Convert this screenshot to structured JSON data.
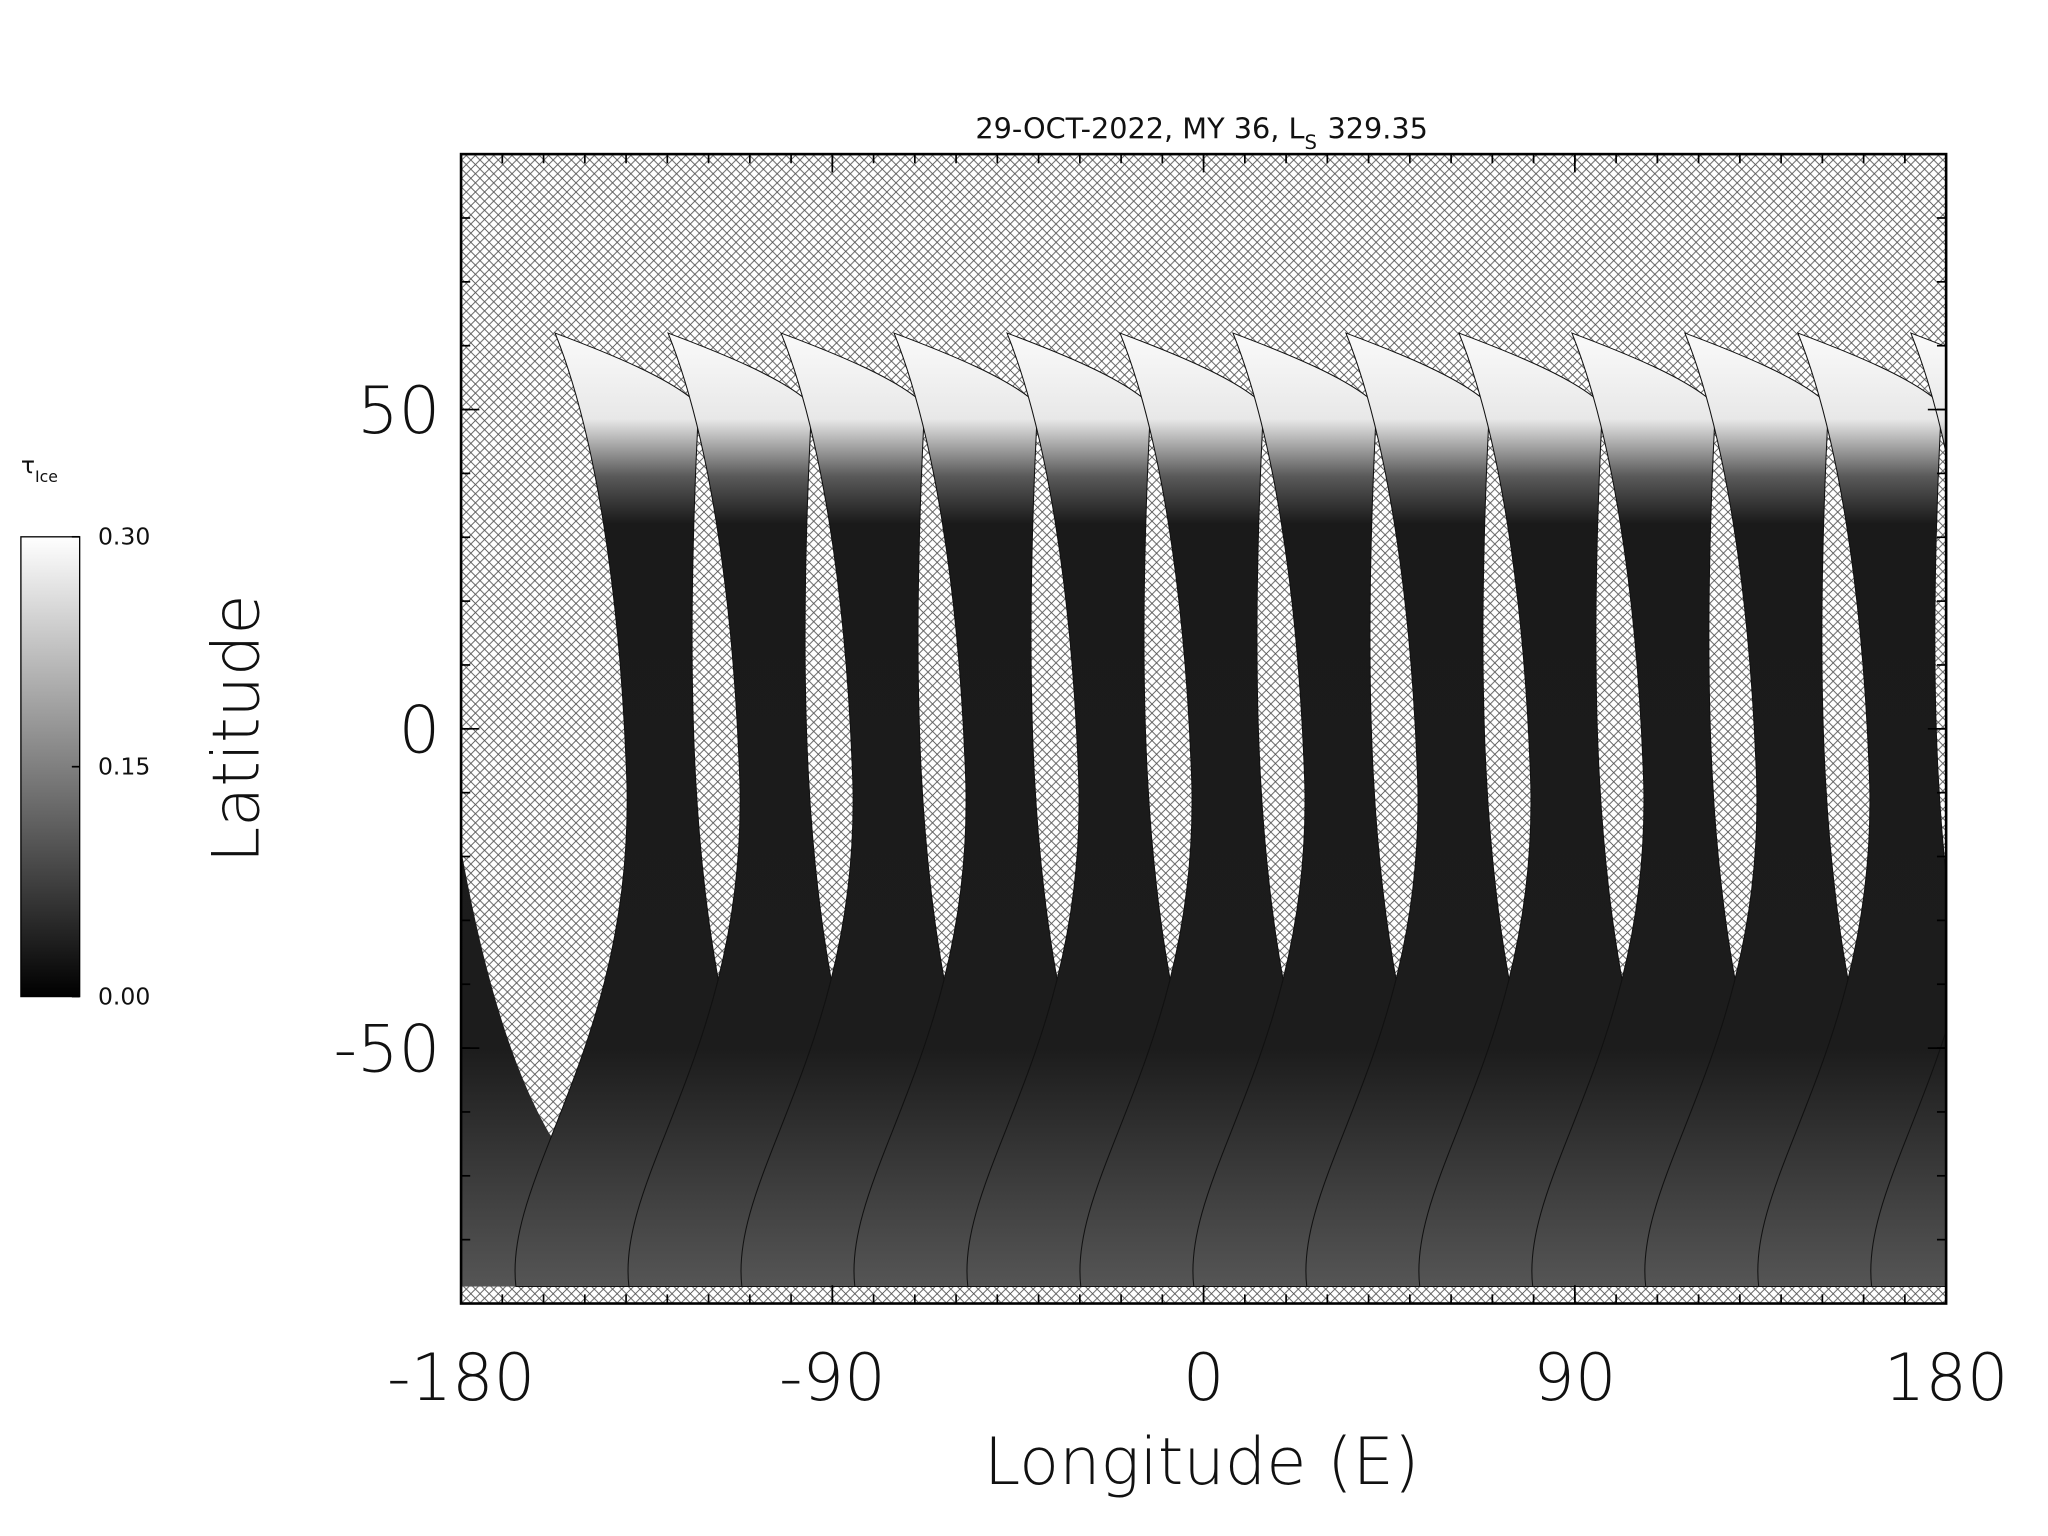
{
  "chart_data": {
    "type": "map",
    "title": "29-OCT-2022, MY 36,  L",
    "title_subscript": "S",
    "title_suffix": "329.35",
    "x_label": "Longitude (E)",
    "y_label": "Latitude",
    "xlim": [
      -180,
      180
    ],
    "ylim": [
      -90,
      90
    ],
    "xticks": [
      -180,
      -90,
      0,
      90,
      180
    ],
    "yticks": [
      -50,
      0,
      50
    ],
    "x_minor_step": 10,
    "y_minor_step": 10,
    "colorbar": {
      "label": "τ",
      "label_subscript": "Ice",
      "lim": [
        0,
        0.3
      ],
      "ticks": [
        {
          "value": 0,
          "label": "0.00"
        },
        {
          "value": 0.15,
          "label": "0.15"
        },
        {
          "value": 0.3,
          "label": "0.30"
        }
      ],
      "colormap": [
        "#000000",
        "#ffffff"
      ]
    }
  }
}
